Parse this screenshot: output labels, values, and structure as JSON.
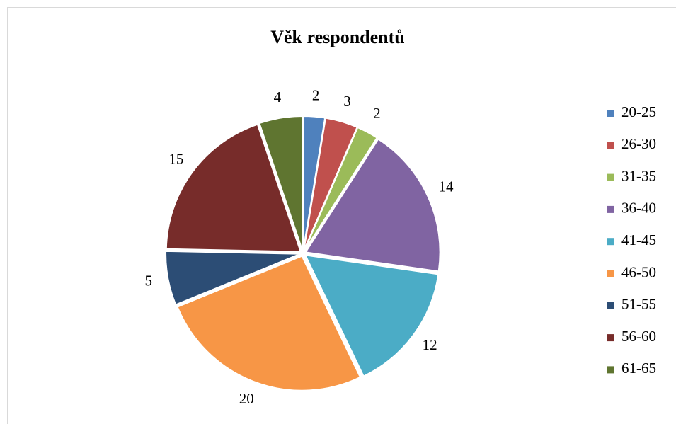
{
  "chart_data": {
    "type": "pie",
    "title": "Věk respondentů",
    "categories": [
      "20-25",
      "26-30",
      "31-35",
      "36-40",
      "41-45",
      "46-50",
      "51-55",
      "56-60",
      "61-65"
    ],
    "values": [
      2,
      3,
      2,
      14,
      12,
      20,
      5,
      15,
      4
    ],
    "colors": [
      "#4f81bd",
      "#c0504d",
      "#9bbb59",
      "#8064a2",
      "#4bacc6",
      "#f79646",
      "#2c4d75",
      "#772c2a",
      "#5f7530"
    ],
    "legend": "right"
  }
}
